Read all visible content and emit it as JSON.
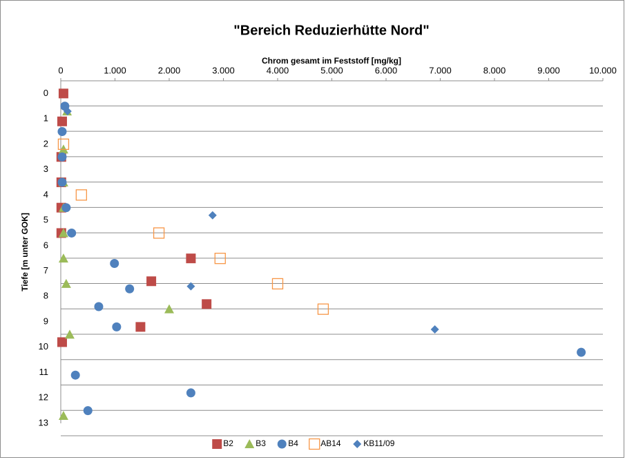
{
  "chart_data": {
    "type": "scatter",
    "title": "\"Bereich Reduzierhütte Nord\"",
    "x_label": "Chrom gesamt im Feststoff  [mg/kg]",
    "y_label": "Tiefe [m unter GOK]",
    "xlim": [
      0,
      10000
    ],
    "ylim": [
      -0.5,
      13
    ],
    "y_reversed": true,
    "grid": true,
    "legend": "bottom",
    "xticks": [
      0,
      {
        "value": 1000,
        "label": "1.000"
      },
      {
        "value": 2000,
        "label": "2.000"
      },
      {
        "value": 3000,
        "label": "3.000"
      },
      {
        "value": 4000,
        "label": "4.000"
      },
      {
        "value": 5000,
        "label": "5.000"
      },
      {
        "value": 6000,
        "label": "6.000"
      },
      {
        "value": 7000,
        "label": "7.000"
      },
      {
        "value": 8000,
        "label": "8.000"
      },
      {
        "value": 9000,
        "label": "9.000"
      },
      {
        "value": 10000,
        "label": "10.000"
      }
    ],
    "yticks": [
      0,
      1,
      2,
      3,
      4,
      5,
      6,
      7,
      8,
      9,
      10,
      11,
      12,
      13
    ],
    "series": [
      {
        "name": "B2",
        "color": "#be4b48",
        "marker": "square",
        "x": [
          50,
          25,
          10,
          10,
          10,
          10,
          2400,
          1670,
          2690,
          1470,
          25
        ],
        "values": [
          0,
          1.1,
          2.5,
          3.5,
          4.5,
          5.5,
          6.5,
          7.4,
          8.3,
          9.2,
          9.8
        ]
      },
      {
        "name": "B3",
        "color": "#9bbb59",
        "marker": "triangle",
        "x": [
          115,
          50,
          50,
          50,
          50,
          50,
          100,
          2000,
          165,
          50
        ],
        "values": [
          0.7,
          2.2,
          3.5,
          4.5,
          5.5,
          6.5,
          7.5,
          8.5,
          9.5,
          12.7
        ]
      },
      {
        "name": "B4",
        "color": "#4f81bd",
        "marker": "circle",
        "x": [
          75,
          25,
          25,
          25,
          100,
          200,
          990,
          1270,
          700,
          1030,
          270,
          2400,
          500,
          9600
        ],
        "values": [
          0.5,
          1.5,
          2.5,
          3.5,
          4.5,
          5.5,
          6.7,
          7.7,
          8.4,
          9.2,
          11.1,
          11.8,
          12.5,
          10.2
        ]
      },
      {
        "name": "AB14",
        "color": "#f79646",
        "marker": "open-square",
        "x": [
          50,
          380,
          1810,
          2940,
          4000,
          4840
        ],
        "values": [
          2,
          4,
          5.5,
          6.5,
          7.5,
          8.5
        ]
      },
      {
        "name": "KB11/09",
        "color": "#4f81bd",
        "marker": "diamond",
        "x": [
          125,
          2800,
          2400,
          6900
        ],
        "values": [
          0.7,
          4.8,
          7.6,
          9.3
        ]
      }
    ]
  }
}
